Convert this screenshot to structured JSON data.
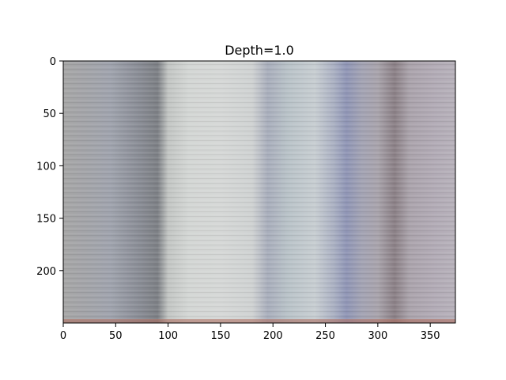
{
  "chart_data": {
    "type": "heatmap",
    "title": "Depth=1.0",
    "xlabel": "",
    "ylabel": "",
    "xlim": [
      0,
      374
    ],
    "ylim": [
      250,
      0
    ],
    "xticks": [
      0,
      50,
      100,
      150,
      200,
      250,
      300,
      350
    ],
    "yticks": [
      0,
      50,
      100,
      150,
      200
    ],
    "grid": false,
    "legend": "none",
    "image_columns": [
      {
        "x": 0,
        "color": "#a6a6a6"
      },
      {
        "x": 20,
        "color": "#a3a4a8"
      },
      {
        "x": 45,
        "color": "#9fa3ad"
      },
      {
        "x": 70,
        "color": "#8b8e97"
      },
      {
        "x": 90,
        "color": "#7c7f84"
      },
      {
        "x": 100,
        "color": "#c2c5c3"
      },
      {
        "x": 120,
        "color": "#d3d6d4"
      },
      {
        "x": 150,
        "color": "#d5d7d6"
      },
      {
        "x": 180,
        "color": "#cfd2d2"
      },
      {
        "x": 195,
        "color": "#a8adbb"
      },
      {
        "x": 215,
        "color": "#b9c3c8"
      },
      {
        "x": 240,
        "color": "#c7cdd1"
      },
      {
        "x": 258,
        "color": "#aab0c2"
      },
      {
        "x": 270,
        "color": "#8f95b5"
      },
      {
        "x": 285,
        "color": "#a3a3b3"
      },
      {
        "x": 300,
        "color": "#a8a3ab"
      },
      {
        "x": 316,
        "color": "#8a7f85"
      },
      {
        "x": 330,
        "color": "#aaa3ab"
      },
      {
        "x": 355,
        "color": "#b2abb6"
      },
      {
        "x": 374,
        "color": "#b7b1ba"
      }
    ],
    "bottom_edge_color": "#b07060"
  }
}
